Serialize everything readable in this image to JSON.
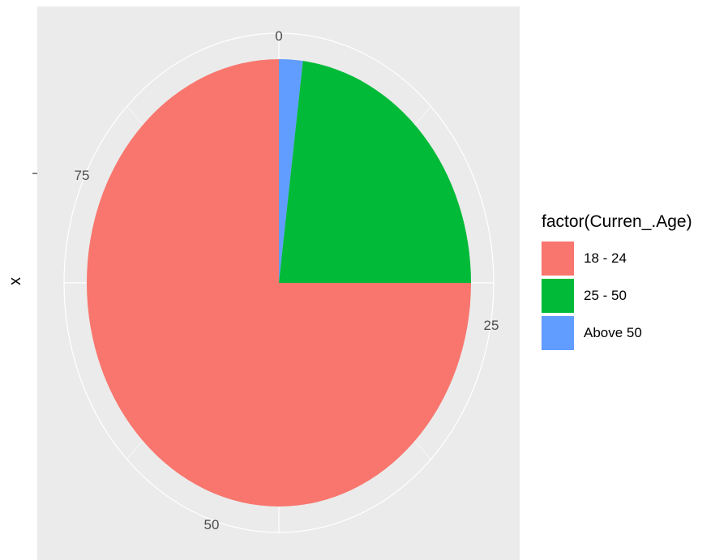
{
  "chart_data": {
    "type": "pie",
    "coord": "polar",
    "xlabel": "x",
    "theta_ticks": [
      "0",
      "25",
      "50",
      "75"
    ],
    "theta_range": [
      0,
      100
    ],
    "grid": true,
    "legend": {
      "title": "factor(Curren_.Age)",
      "position": "right"
    },
    "slices": [
      {
        "label": "Above 50",
        "value": 2,
        "color": "#619CFF"
      },
      {
        "label": "25 - 50",
        "value": 23,
        "color": "#00BA38"
      },
      {
        "label": "18 - 24",
        "value": 75,
        "color": "#F8766D"
      }
    ],
    "legend_entries": [
      {
        "label": "18 - 24",
        "color": "#F8766D"
      },
      {
        "label": "25 - 50",
        "color": "#00BA38"
      },
      {
        "label": "Above 50",
        "color": "#619CFF"
      }
    ],
    "panel_background": "#EBEBEB",
    "grid_color": "#FFFFFF"
  }
}
